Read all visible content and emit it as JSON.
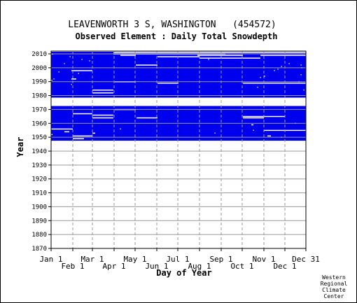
{
  "chart_data": {
    "type": "heatmap",
    "title": "LEAVENWORTH 3 S, WASHINGTON   (454572)",
    "subtitle": "Observed Element : Daily Total Snowdepth",
    "xlabel": "Day of Year",
    "ylabel": "Year",
    "ylim": [
      1870,
      2012
    ],
    "xlim": [
      1,
      365
    ],
    "x_ticks_upper": [
      {
        "label": "Jan 1",
        "day": 1
      },
      {
        "label": "Mar 1",
        "day": 60
      },
      {
        "label": "May 1",
        "day": 121
      },
      {
        "label": "Jul 1",
        "day": 182
      },
      {
        "label": "Sep 1",
        "day": 244
      },
      {
        "label": "Nov 1",
        "day": 305
      },
      {
        "label": "Dec 31",
        "day": 365
      }
    ],
    "x_ticks_lower": [
      {
        "label": "Feb 1",
        "day": 32
      },
      {
        "label": "Apr 1",
        "day": 91
      },
      {
        "label": "Jun 1",
        "day": 152
      },
      {
        "label": "Aug 1",
        "day": 213
      },
      {
        "label": "Oct 1",
        "day": 274
      },
      {
        "label": "Dec 1",
        "day": 335
      }
    ],
    "y_ticks": [
      1870,
      1880,
      1890,
      1900,
      1910,
      1920,
      1930,
      1940,
      1950,
      1960,
      1970,
      1980,
      1990,
      2000,
      2010
    ],
    "grid": true,
    "fill_color": "#0000ee",
    "observed_periods": [
      {
        "start_year": 1947.5,
        "end_year": 1972.5,
        "full_year_until": 1972.5
      },
      {
        "start_year": 1978.5,
        "end_year": 2011.5
      }
    ],
    "missing_segments": [
      {
        "year": 2010,
        "start_day": 1,
        "end_day": 4
      },
      {
        "year": 2010,
        "start_day": 90,
        "end_day": 250
      },
      {
        "year": 2011,
        "start_day": 90,
        "end_day": 365
      },
      {
        "year": 2009,
        "start_day": 100,
        "end_day": 122
      },
      {
        "year": 2009,
        "start_day": 210,
        "end_day": 250
      },
      {
        "year": 2009,
        "start_day": 250,
        "end_day": 275
      },
      {
        "year": 2009,
        "start_day": 300,
        "end_day": 365
      },
      {
        "year": 2008,
        "start_day": 153,
        "end_day": 213
      },
      {
        "year": 2007,
        "start_day": 213,
        "end_day": 300
      },
      {
        "year": 2002,
        "start_day": 122,
        "end_day": 153
      },
      {
        "year": 1998,
        "start_day": 30,
        "end_day": 60
      },
      {
        "year": 1992,
        "start_day": 30,
        "end_day": 37
      },
      {
        "year": 1990,
        "start_day": 92,
        "end_day": 122
      },
      {
        "year": 1989,
        "start_day": 153,
        "end_day": 183
      },
      {
        "year": 1989,
        "start_day": 275,
        "end_day": 365
      },
      {
        "year": 1984,
        "start_day": 60,
        "end_day": 90
      },
      {
        "year": 1982,
        "start_day": 60,
        "end_day": 90
      },
      {
        "year": 1973,
        "start_day": 1,
        "end_day": 27
      },
      {
        "year": 1970,
        "start_day": 92,
        "end_day": 122
      },
      {
        "year": 1967,
        "start_day": 32,
        "end_day": 60
      },
      {
        "year": 1966,
        "start_day": 60,
        "end_day": 90
      },
      {
        "year": 1965,
        "start_day": 275,
        "end_day": 335
      },
      {
        "year": 1964,
        "start_day": 60,
        "end_day": 90
      },
      {
        "year": 1964,
        "start_day": 123,
        "end_day": 153
      },
      {
        "year": 1964,
        "start_day": 275,
        "end_day": 305
      },
      {
        "year": 1959,
        "start_day": 287,
        "end_day": 290
      },
      {
        "year": 1956,
        "start_day": 1,
        "end_day": 32
      },
      {
        "year": 1955,
        "start_day": 305,
        "end_day": 365
      },
      {
        "year": 1954,
        "start_day": 20,
        "end_day": 27
      },
      {
        "year": 1953,
        "start_day": 60,
        "end_day": 64
      },
      {
        "year": 1952,
        "start_day": 1,
        "end_day": 3
      },
      {
        "year": 1951,
        "start_day": 32,
        "end_day": 60
      },
      {
        "year": 1951,
        "start_day": 310,
        "end_day": 315
      },
      {
        "year": 1949,
        "start_day": 32,
        "end_day": 48
      }
    ],
    "missing_dots": [
      {
        "year": 2008,
        "day": 28
      },
      {
        "year": 2006,
        "day": 45
      },
      {
        "year": 2005,
        "day": 56
      },
      {
        "year": 2003,
        "day": 20
      },
      {
        "year": 2003,
        "day": 341
      },
      {
        "year": 2002,
        "day": 358
      },
      {
        "year": 2001,
        "day": 330
      },
      {
        "year": 2000,
        "day": 359
      },
      {
        "year": 1999,
        "day": 325
      },
      {
        "year": 1998,
        "day": 320
      },
      {
        "year": 1997,
        "day": 12
      },
      {
        "year": 1996,
        "day": 40
      },
      {
        "year": 1995,
        "day": 358
      },
      {
        "year": 1994,
        "day": 306
      },
      {
        "year": 1993,
        "day": 300
      },
      {
        "year": 1992,
        "day": 5
      },
      {
        "year": 1991,
        "day": 2
      },
      {
        "year": 1990,
        "day": 355
      },
      {
        "year": 1988,
        "day": 30
      },
      {
        "year": 1986,
        "day": 296
      },
      {
        "year": 1984,
        "day": 362
      },
      {
        "year": 2006,
        "day": 226
      },
      {
        "year": 1955,
        "day": 290
      },
      {
        "year": 1950,
        "day": 330
      },
      {
        "year": 1956,
        "day": 100
      },
      {
        "year": 1953,
        "day": 235
      },
      {
        "year": 1960,
        "day": 350
      }
    ]
  },
  "credits": [
    "Western",
    "Regional",
    "Climate",
    "Center"
  ]
}
